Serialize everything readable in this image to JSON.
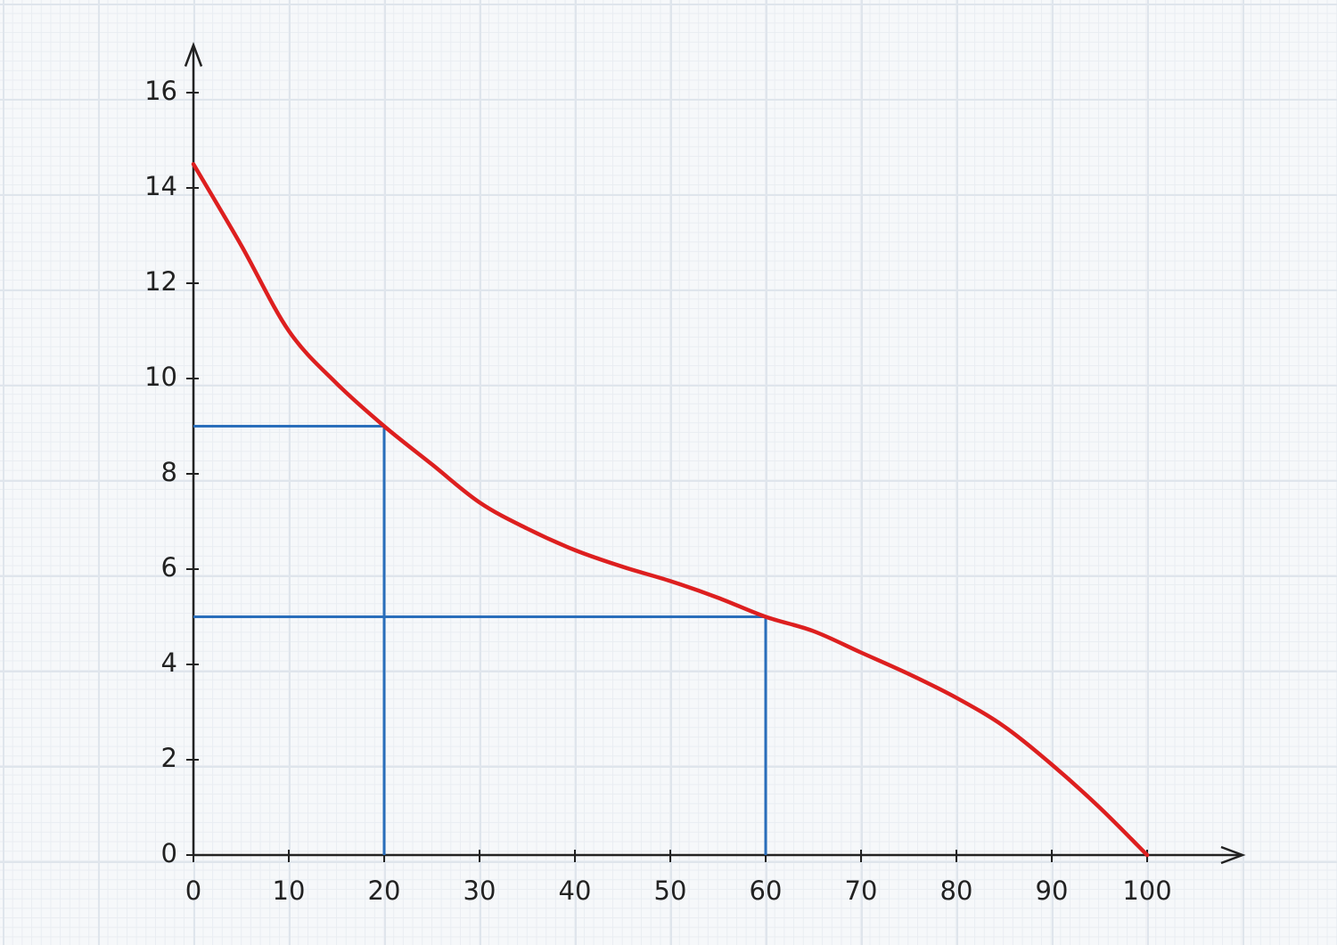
{
  "chart_data": {
    "type": "line",
    "xlim": [
      0,
      110
    ],
    "ylim": [
      0,
      17
    ],
    "xticks": [
      0,
      10,
      20,
      30,
      40,
      50,
      60,
      70,
      80,
      90,
      100
    ],
    "yticks": [
      0,
      2,
      4,
      6,
      8,
      10,
      12,
      14,
      16
    ],
    "series": [
      {
        "color": "#dd1f1f",
        "x": [
          0,
          5,
          10,
          15,
          20,
          25,
          30,
          35,
          40,
          45,
          50,
          55,
          60,
          65,
          70,
          75,
          80,
          85,
          90,
          95,
          100
        ],
        "values": [
          14.5,
          12.8,
          11.0,
          9.9,
          9.0,
          8.2,
          7.4,
          6.85,
          6.4,
          6.05,
          5.75,
          5.4,
          5.0,
          4.7,
          4.25,
          3.8,
          3.3,
          2.7,
          1.9,
          1.0,
          0
        ]
      }
    ],
    "guides": [
      {
        "x": 20,
        "y": 9
      },
      {
        "x": 60,
        "y": 5
      }
    ],
    "guide_color": "#2a6ebb"
  }
}
